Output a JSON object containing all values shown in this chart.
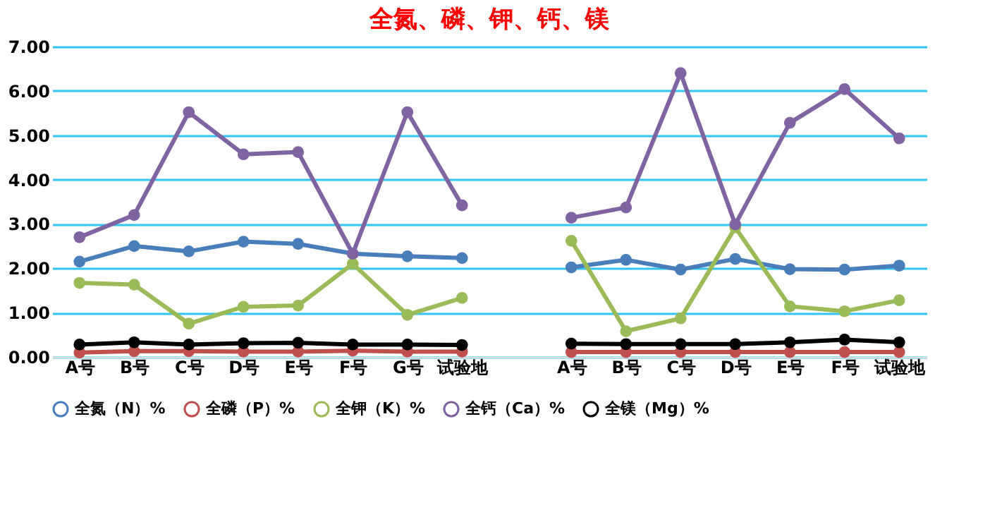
{
  "chart_data": {
    "type": "line",
    "title": "全氮、磷、钾、钙、镁",
    "categories": [
      "A号",
      "B号",
      "C号",
      "D号",
      "E号",
      "F号",
      "G号",
      "试验地",
      null,
      "A号",
      "B号",
      "C号",
      "D号",
      "E号",
      "F号",
      "试验地"
    ],
    "series": [
      {
        "name": "全氮（N）%",
        "color": "#4a7ebb",
        "values": [
          2.15,
          2.5,
          2.38,
          2.6,
          2.55,
          2.33,
          2.27,
          2.23,
          null,
          2.02,
          2.19,
          1.97,
          2.21,
          1.98,
          1.97,
          2.06
        ]
      },
      {
        "name": "全磷（P）%",
        "color": "#c0504d",
        "values": [
          0.1,
          0.13,
          0.13,
          0.12,
          0.12,
          0.14,
          0.12,
          0.12,
          null,
          0.11,
          0.11,
          0.11,
          0.11,
          0.11,
          0.11,
          0.11
        ]
      },
      {
        "name": "全钾（K）%",
        "color": "#9bbb59",
        "values": [
          1.67,
          1.63,
          0.75,
          1.13,
          1.16,
          2.1,
          0.95,
          1.33,
          null,
          2.62,
          0.58,
          0.87,
          2.92,
          1.14,
          1.03,
          1.28
        ]
      },
      {
        "name": "全钙（Ca）%",
        "color": "#8064a2",
        "values": [
          2.7,
          3.2,
          5.52,
          4.57,
          4.62,
          2.33,
          5.52,
          3.42,
          null,
          3.14,
          3.37,
          6.4,
          2.99,
          5.28,
          6.04,
          4.93
        ]
      },
      {
        "name": "全镁（Mg）%",
        "color": "#000000",
        "values": [
          0.28,
          0.33,
          0.28,
          0.31,
          0.32,
          0.28,
          0.28,
          0.27,
          null,
          0.3,
          0.29,
          0.29,
          0.29,
          0.33,
          0.39,
          0.33
        ]
      }
    ],
    "ylim": [
      0,
      7
    ],
    "yticks": [
      {
        "value": 0,
        "label": "0.00"
      },
      {
        "value": 1,
        "label": "1.00"
      },
      {
        "value": 2,
        "label": "2.00"
      },
      {
        "value": 3,
        "label": "3.00"
      },
      {
        "value": 4,
        "label": "4.00"
      },
      {
        "value": 5,
        "label": "5.00"
      },
      {
        "value": 6,
        "label": "6.00"
      },
      {
        "value": 7,
        "label": "7.00"
      }
    ],
    "grid": "y",
    "legend": "bottom",
    "marker": "circle",
    "line_style": "solid"
  }
}
